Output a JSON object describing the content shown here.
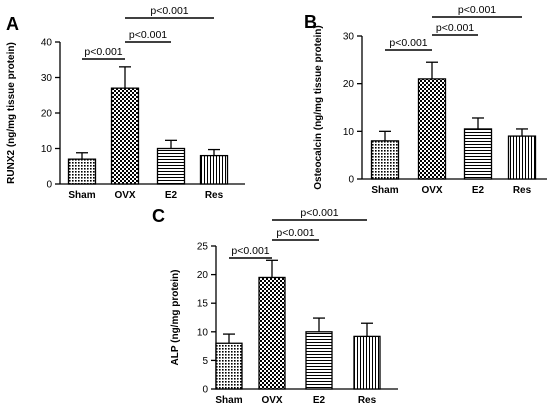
{
  "chart_data": [
    {
      "panel": "A",
      "type": "bar",
      "ylabel": "RUNX2 (ng/mg tissue protein)",
      "categories": [
        "Sham",
        "OVX",
        "E2",
        "Res"
      ],
      "values": [
        7,
        27,
        10,
        8
      ],
      "errors": [
        1.8,
        6,
        2.3,
        1.7
      ],
      "ylim": [
        0,
        40
      ],
      "yticks": [
        "0",
        "10",
        "20",
        "30",
        "40"
      ],
      "comparisons": [
        {
          "from": 0,
          "to": 1,
          "label": "p<0.001"
        },
        {
          "from": 1,
          "to": 2,
          "label": "p<0.001"
        },
        {
          "from": 1,
          "to": 3,
          "label": "p<0.001"
        }
      ]
    },
    {
      "panel": "B",
      "type": "bar",
      "ylabel": "Osteocalcin (ng/mg tissue protein)",
      "categories": [
        "Sham",
        "OVX",
        "E2",
        "Res"
      ],
      "values": [
        8,
        21,
        10.5,
        9
      ],
      "errors": [
        2,
        3.5,
        2.3,
        1.5
      ],
      "ylim": [
        0,
        30
      ],
      "yticks": [
        "0",
        "10",
        "20",
        "30"
      ],
      "comparisons": [
        {
          "from": 0,
          "to": 1,
          "label": "p<0.001"
        },
        {
          "from": 1,
          "to": 2,
          "label": "p<0.001"
        },
        {
          "from": 1,
          "to": 3,
          "label": "p<0.001"
        }
      ]
    },
    {
      "panel": "C",
      "type": "bar",
      "ylabel": "ALP (ng/mg protein)",
      "categories": [
        "Sham",
        "OVX",
        "E2",
        "Res"
      ],
      "values": [
        8,
        19.5,
        10,
        9.2
      ],
      "errors": [
        1.6,
        3,
        2.4,
        2.3
      ],
      "ylim": [
        0,
        25
      ],
      "yticks": [
        "0",
        "5",
        "10",
        "15",
        "20",
        "25"
      ],
      "comparisons": [
        {
          "from": 0,
          "to": 1,
          "label": "p<0.001"
        },
        {
          "from": 1,
          "to": 2,
          "label": "p<0.001"
        },
        {
          "from": 1,
          "to": 3,
          "label": "p<0.001"
        }
      ]
    }
  ]
}
